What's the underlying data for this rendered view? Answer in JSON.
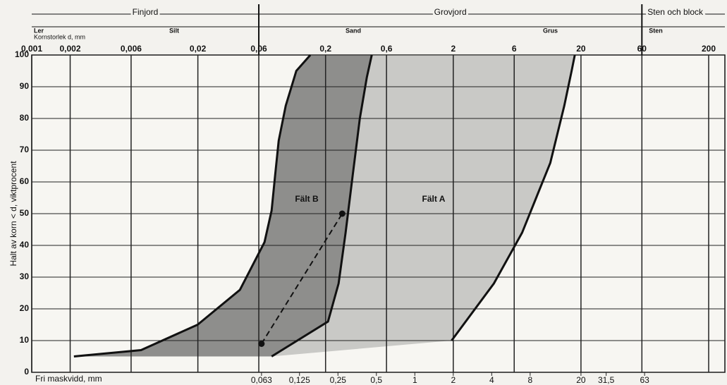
{
  "chart_data": {
    "type": "line",
    "xlog": true,
    "ylabel": "Halt av korn < d, viktprocent",
    "header": {
      "divisions": [
        "Finjord",
        "Grovjord",
        "Sten och block"
      ],
      "size_label": "Kornstorlek d, mm",
      "fractions": [
        "Ler",
        "Silt",
        "Sand",
        "Grus",
        "Sten"
      ]
    },
    "xlim": [
      0.001,
      200
    ],
    "xticks": [
      {
        "value": 0.001,
        "label": "0,001"
      },
      {
        "value": 0.002,
        "label": "0,002"
      },
      {
        "value": 0.006,
        "label": "0,006"
      },
      {
        "value": 0.02,
        "label": "0,02"
      },
      {
        "value": 0.06,
        "label": "0,06"
      },
      {
        "value": 0.2,
        "label": "0,2"
      },
      {
        "value": 0.6,
        "label": "0,6"
      },
      2,
      6,
      20,
      60,
      200
    ],
    "sieve_label": "Fri maskvidd, mm",
    "sieve_ticks": [
      {
        "value": 0.063,
        "label": "0,063"
      },
      {
        "value": 0.125,
        "label": "0,125"
      },
      {
        "value": 0.25,
        "label": "0,25"
      },
      {
        "value": 0.5,
        "label": "0,5"
      },
      1,
      2,
      4,
      8,
      20,
      {
        "value": 31.5,
        "label": "31,5"
      },
      63
    ],
    "ylim": [
      0,
      100
    ],
    "yticks": [
      0,
      10,
      20,
      30,
      40,
      50,
      60,
      70,
      80,
      90,
      100
    ],
    "grid": true,
    "curves": [
      {
        "x": [
          0.00214,
          0.00718,
          0.0199,
          0.0427,
          0.0665,
          0.0756,
          0.0805,
          0.0859,
          0.0975,
          0.118,
          0.152
        ],
        "y": [
          5,
          7,
          15,
          26,
          41,
          51,
          62,
          73,
          84,
          95,
          100
        ]
      },
      {
        "x": [
          0.0756,
          0.209,
          0.253,
          0.287,
          0.326,
          0.371,
          0.421,
          0.46
        ],
        "y": [
          5,
          16,
          28,
          44,
          62,
          80,
          93,
          100
        ]
      },
      {
        "x": [
          1.94,
          4.16,
          6.92,
          11.5,
          14.8,
          16.9,
          17.9
        ],
        "y": [
          10,
          28,
          44,
          66,
          84,
          95,
          100
        ]
      }
    ],
    "region_colors": [
      "#8e8e8c",
      "#c9c9c6"
    ],
    "points": {
      "x": [
        0.063,
        0.27
      ],
      "y": [
        9,
        50
      ]
    },
    "annotations": [
      "Fält B",
      "Fält A"
    ]
  }
}
